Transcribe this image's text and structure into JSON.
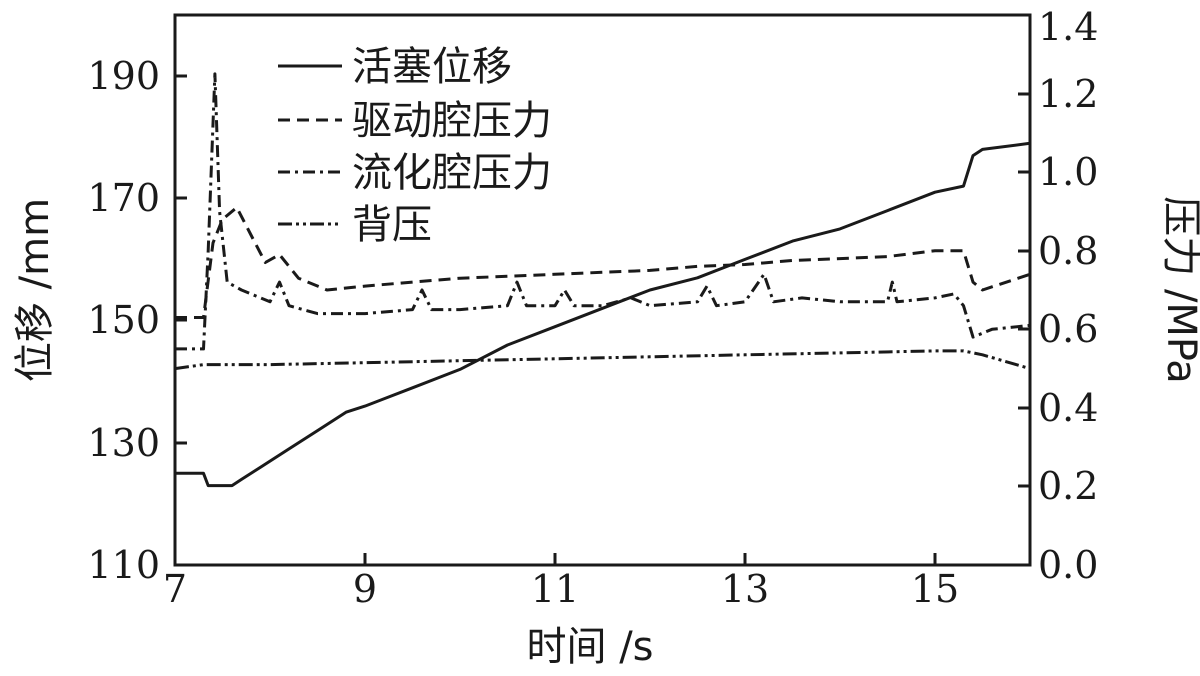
{
  "chart_data": {
    "type": "line",
    "xlabel": "时间 /s",
    "ylabel_left": "位移 /mm",
    "ylabel_right": "压力 /MPa",
    "xlim": [
      7,
      16
    ],
    "ylim_left": [
      110,
      200
    ],
    "ylim_right": [
      0.0,
      1.4
    ],
    "x_ticks": [
      "7",
      "9",
      "11",
      "13",
      "15"
    ],
    "y_left_ticks": [
      "110",
      "130",
      "150",
      "170",
      "190"
    ],
    "y_right_ticks": [
      "0.0",
      "0.2",
      "0.4",
      "0.6",
      "0.8",
      "1.0",
      "1.2",
      "1.4"
    ],
    "grid": false,
    "legend_position": "top-left",
    "series": [
      {
        "name": "活塞位移",
        "axis": "left",
        "style": "solid",
        "x": [
          7.0,
          7.3,
          7.35,
          7.6,
          7.7,
          7.9,
          8.0,
          8.2,
          8.5,
          8.8,
          9.0,
          9.5,
          10.0,
          10.5,
          11.0,
          11.5,
          12.0,
          12.5,
          13.0,
          13.5,
          14.0,
          14.5,
          15.0,
          15.3,
          15.4,
          15.5,
          16.0
        ],
        "values": [
          125,
          125,
          123,
          123,
          124,
          126,
          127,
          129,
          132,
          135,
          136,
          139,
          142,
          146,
          149,
          152,
          155,
          157,
          160,
          163,
          165,
          168,
          171,
          172,
          177,
          178,
          179
        ]
      },
      {
        "name": "驱动腔压力",
        "axis": "right",
        "style": "dashed",
        "x": [
          7.0,
          7.3,
          7.4,
          7.5,
          7.65,
          7.8,
          7.95,
          8.1,
          8.3,
          8.6,
          9.0,
          9.5,
          10.0,
          10.5,
          11.0,
          11.5,
          12.0,
          12.5,
          13.0,
          13.5,
          14.0,
          14.5,
          15.0,
          15.3,
          15.4,
          15.5,
          16.0
        ],
        "values": [
          0.63,
          0.63,
          0.82,
          0.88,
          0.91,
          0.84,
          0.77,
          0.79,
          0.73,
          0.7,
          0.71,
          0.72,
          0.73,
          0.735,
          0.74,
          0.745,
          0.75,
          0.76,
          0.765,
          0.775,
          0.78,
          0.785,
          0.8,
          0.8,
          0.72,
          0.7,
          0.74
        ]
      },
      {
        "name": "流化腔压力",
        "axis": "right",
        "style": "dash-dot",
        "x": [
          7.0,
          7.3,
          7.35,
          7.42,
          7.47,
          7.55,
          7.7,
          8.0,
          8.1,
          8.2,
          8.5,
          9.0,
          9.5,
          9.6,
          9.7,
          10.0,
          10.5,
          10.6,
          10.7,
          11.0,
          11.1,
          11.2,
          11.5,
          11.8,
          12.0,
          12.5,
          12.6,
          12.7,
          13.0,
          13.2,
          13.3,
          13.6,
          14.0,
          14.5,
          14.55,
          14.6,
          15.0,
          15.2,
          15.3,
          15.4,
          15.6,
          16.0
        ],
        "values": [
          0.55,
          0.55,
          0.8,
          1.25,
          0.9,
          0.72,
          0.7,
          0.67,
          0.72,
          0.66,
          0.64,
          0.64,
          0.65,
          0.7,
          0.65,
          0.65,
          0.66,
          0.72,
          0.66,
          0.66,
          0.7,
          0.66,
          0.66,
          0.68,
          0.66,
          0.67,
          0.71,
          0.66,
          0.67,
          0.74,
          0.67,
          0.68,
          0.67,
          0.67,
          0.72,
          0.67,
          0.68,
          0.69,
          0.66,
          0.58,
          0.6,
          0.61
        ]
      },
      {
        "name": "背压",
        "axis": "right",
        "style": "dash-dot-dot",
        "x": [
          7.0,
          7.3,
          8.0,
          9.0,
          10.0,
          11.0,
          12.0,
          13.0,
          14.0,
          15.0,
          15.3,
          15.5,
          16.0
        ],
        "values": [
          0.5,
          0.51,
          0.51,
          0.515,
          0.52,
          0.525,
          0.53,
          0.535,
          0.54,
          0.545,
          0.545,
          0.535,
          0.5
        ]
      }
    ]
  }
}
